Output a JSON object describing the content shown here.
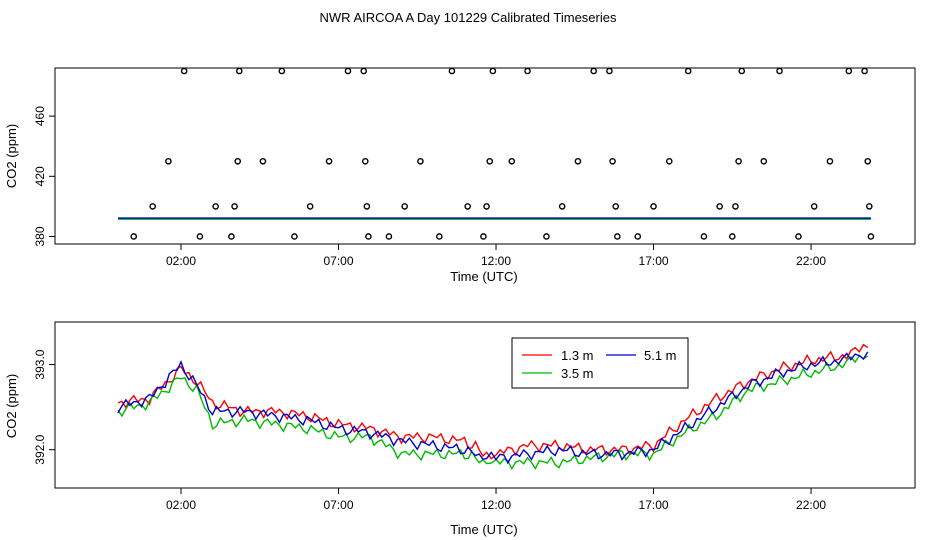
{
  "title": "NWR AIRCOA A  Day 101229  Calibrated Timeseries",
  "chart_data": [
    {
      "type": "scatter",
      "xlabel": "Time (UTC)",
      "ylabel": "CO2 (ppm)",
      "xlim": [
        -2.0,
        25.3
      ],
      "ylim": [
        375,
        492
      ],
      "xticks": [
        2,
        7,
        12,
        17,
        22
      ],
      "xtick_labels": [
        "02:00",
        "07:00",
        "12:00",
        "17:00",
        "22:00"
      ],
      "yticks": [
        380,
        420,
        460
      ],
      "ytick_labels": [
        "380",
        "420",
        "460"
      ],
      "points": [
        [
          0.5,
          380
        ],
        [
          1.1,
          400
        ],
        [
          1.6,
          430
        ],
        [
          2.1,
          490
        ],
        [
          2.6,
          380
        ],
        [
          3.1,
          400
        ],
        [
          3.6,
          380
        ],
        [
          3.7,
          400
        ],
        [
          3.8,
          430
        ],
        [
          3.85,
          490
        ],
        [
          4.6,
          430
        ],
        [
          5.2,
          490
        ],
        [
          5.6,
          380
        ],
        [
          6.1,
          400
        ],
        [
          6.7,
          430
        ],
        [
          7.3,
          490
        ],
        [
          7.8,
          490
        ],
        [
          7.85,
          430
        ],
        [
          7.9,
          400
        ],
        [
          7.95,
          380
        ],
        [
          8.6,
          380
        ],
        [
          9.1,
          400
        ],
        [
          9.6,
          430
        ],
        [
          10.2,
          380
        ],
        [
          10.6,
          490
        ],
        [
          11.1,
          400
        ],
        [
          11.6,
          380
        ],
        [
          11.7,
          400
        ],
        [
          11.8,
          430
        ],
        [
          11.9,
          490
        ],
        [
          12.5,
          430
        ],
        [
          13.0,
          490
        ],
        [
          13.6,
          380
        ],
        [
          14.1,
          400
        ],
        [
          14.6,
          430
        ],
        [
          15.1,
          490
        ],
        [
          15.6,
          490
        ],
        [
          15.7,
          430
        ],
        [
          15.8,
          400
        ],
        [
          15.85,
          380
        ],
        [
          16.5,
          380
        ],
        [
          17.0,
          400
        ],
        [
          17.5,
          430
        ],
        [
          18.1,
          490
        ],
        [
          18.6,
          380
        ],
        [
          19.1,
          400
        ],
        [
          19.5,
          380
        ],
        [
          19.6,
          400
        ],
        [
          19.7,
          430
        ],
        [
          19.8,
          490
        ],
        [
          20.5,
          430
        ],
        [
          21.0,
          490
        ],
        [
          21.6,
          380
        ],
        [
          22.1,
          400
        ],
        [
          22.6,
          430
        ],
        [
          23.2,
          490
        ],
        [
          23.7,
          490
        ],
        [
          23.8,
          430
        ],
        [
          23.85,
          400
        ],
        [
          23.9,
          380
        ]
      ],
      "baseline_series": [
        {
          "name": "1.3 m",
          "color": "#ff0000",
          "y": 392
        },
        {
          "name": "3.5 m",
          "color": "#00bb00",
          "y": 391.6
        },
        {
          "name": "5.1 m",
          "color": "#0000cc",
          "y": 392.2
        }
      ]
    },
    {
      "type": "line",
      "xlabel": "Time (UTC)",
      "ylabel": "CO2 (ppm)",
      "xlim": [
        -2.0,
        25.3
      ],
      "ylim": [
        391.55,
        393.5
      ],
      "xticks": [
        2,
        7,
        12,
        17,
        22
      ],
      "xtick_labels": [
        "02:00",
        "07:00",
        "12:00",
        "17:00",
        "22:00"
      ],
      "yticks": [
        392.0,
        393.0
      ],
      "ytick_labels": [
        "392.0",
        "393.0"
      ],
      "legend": {
        "position": "top-center",
        "entries": [
          "1.3 m",
          "3.5 m",
          "5.1 m"
        ]
      },
      "x": [
        0,
        1,
        2,
        2.5,
        3,
        4,
        5,
        6,
        7,
        8,
        9,
        10,
        11,
        11.7,
        12,
        13,
        14,
        15,
        16,
        17,
        18,
        19,
        20,
        21,
        22,
        23,
        23.8
      ],
      "series": [
        {
          "name": "1.3 m",
          "color": "#ff0000",
          "values": [
            392.55,
            392.6,
            392.95,
            392.8,
            392.55,
            392.45,
            392.45,
            392.4,
            392.3,
            392.25,
            392.15,
            392.15,
            392.1,
            391.95,
            391.95,
            392.05,
            392.05,
            392.0,
            392.0,
            392.05,
            392.35,
            392.6,
            392.8,
            392.95,
            393.05,
            393.1,
            393.2
          ]
        },
        {
          "name": "3.5 m",
          "color": "#00bb00",
          "values": [
            392.45,
            392.55,
            392.85,
            392.7,
            392.3,
            392.35,
            392.3,
            392.25,
            392.15,
            392.15,
            391.95,
            391.95,
            391.95,
            391.85,
            391.85,
            391.85,
            391.85,
            391.9,
            391.95,
            391.95,
            392.2,
            392.4,
            392.7,
            392.8,
            392.9,
            393.0,
            393.1
          ]
        },
        {
          "name": "5.1 m",
          "color": "#0000cc",
          "values": [
            392.5,
            392.6,
            393.0,
            392.75,
            392.45,
            392.45,
            392.4,
            392.35,
            392.25,
            392.2,
            392.1,
            392.05,
            392.0,
            391.9,
            391.9,
            391.95,
            392.0,
            391.95,
            391.95,
            392.0,
            392.25,
            392.5,
            392.75,
            392.9,
            393.0,
            393.05,
            393.15
          ]
        }
      ]
    }
  ]
}
